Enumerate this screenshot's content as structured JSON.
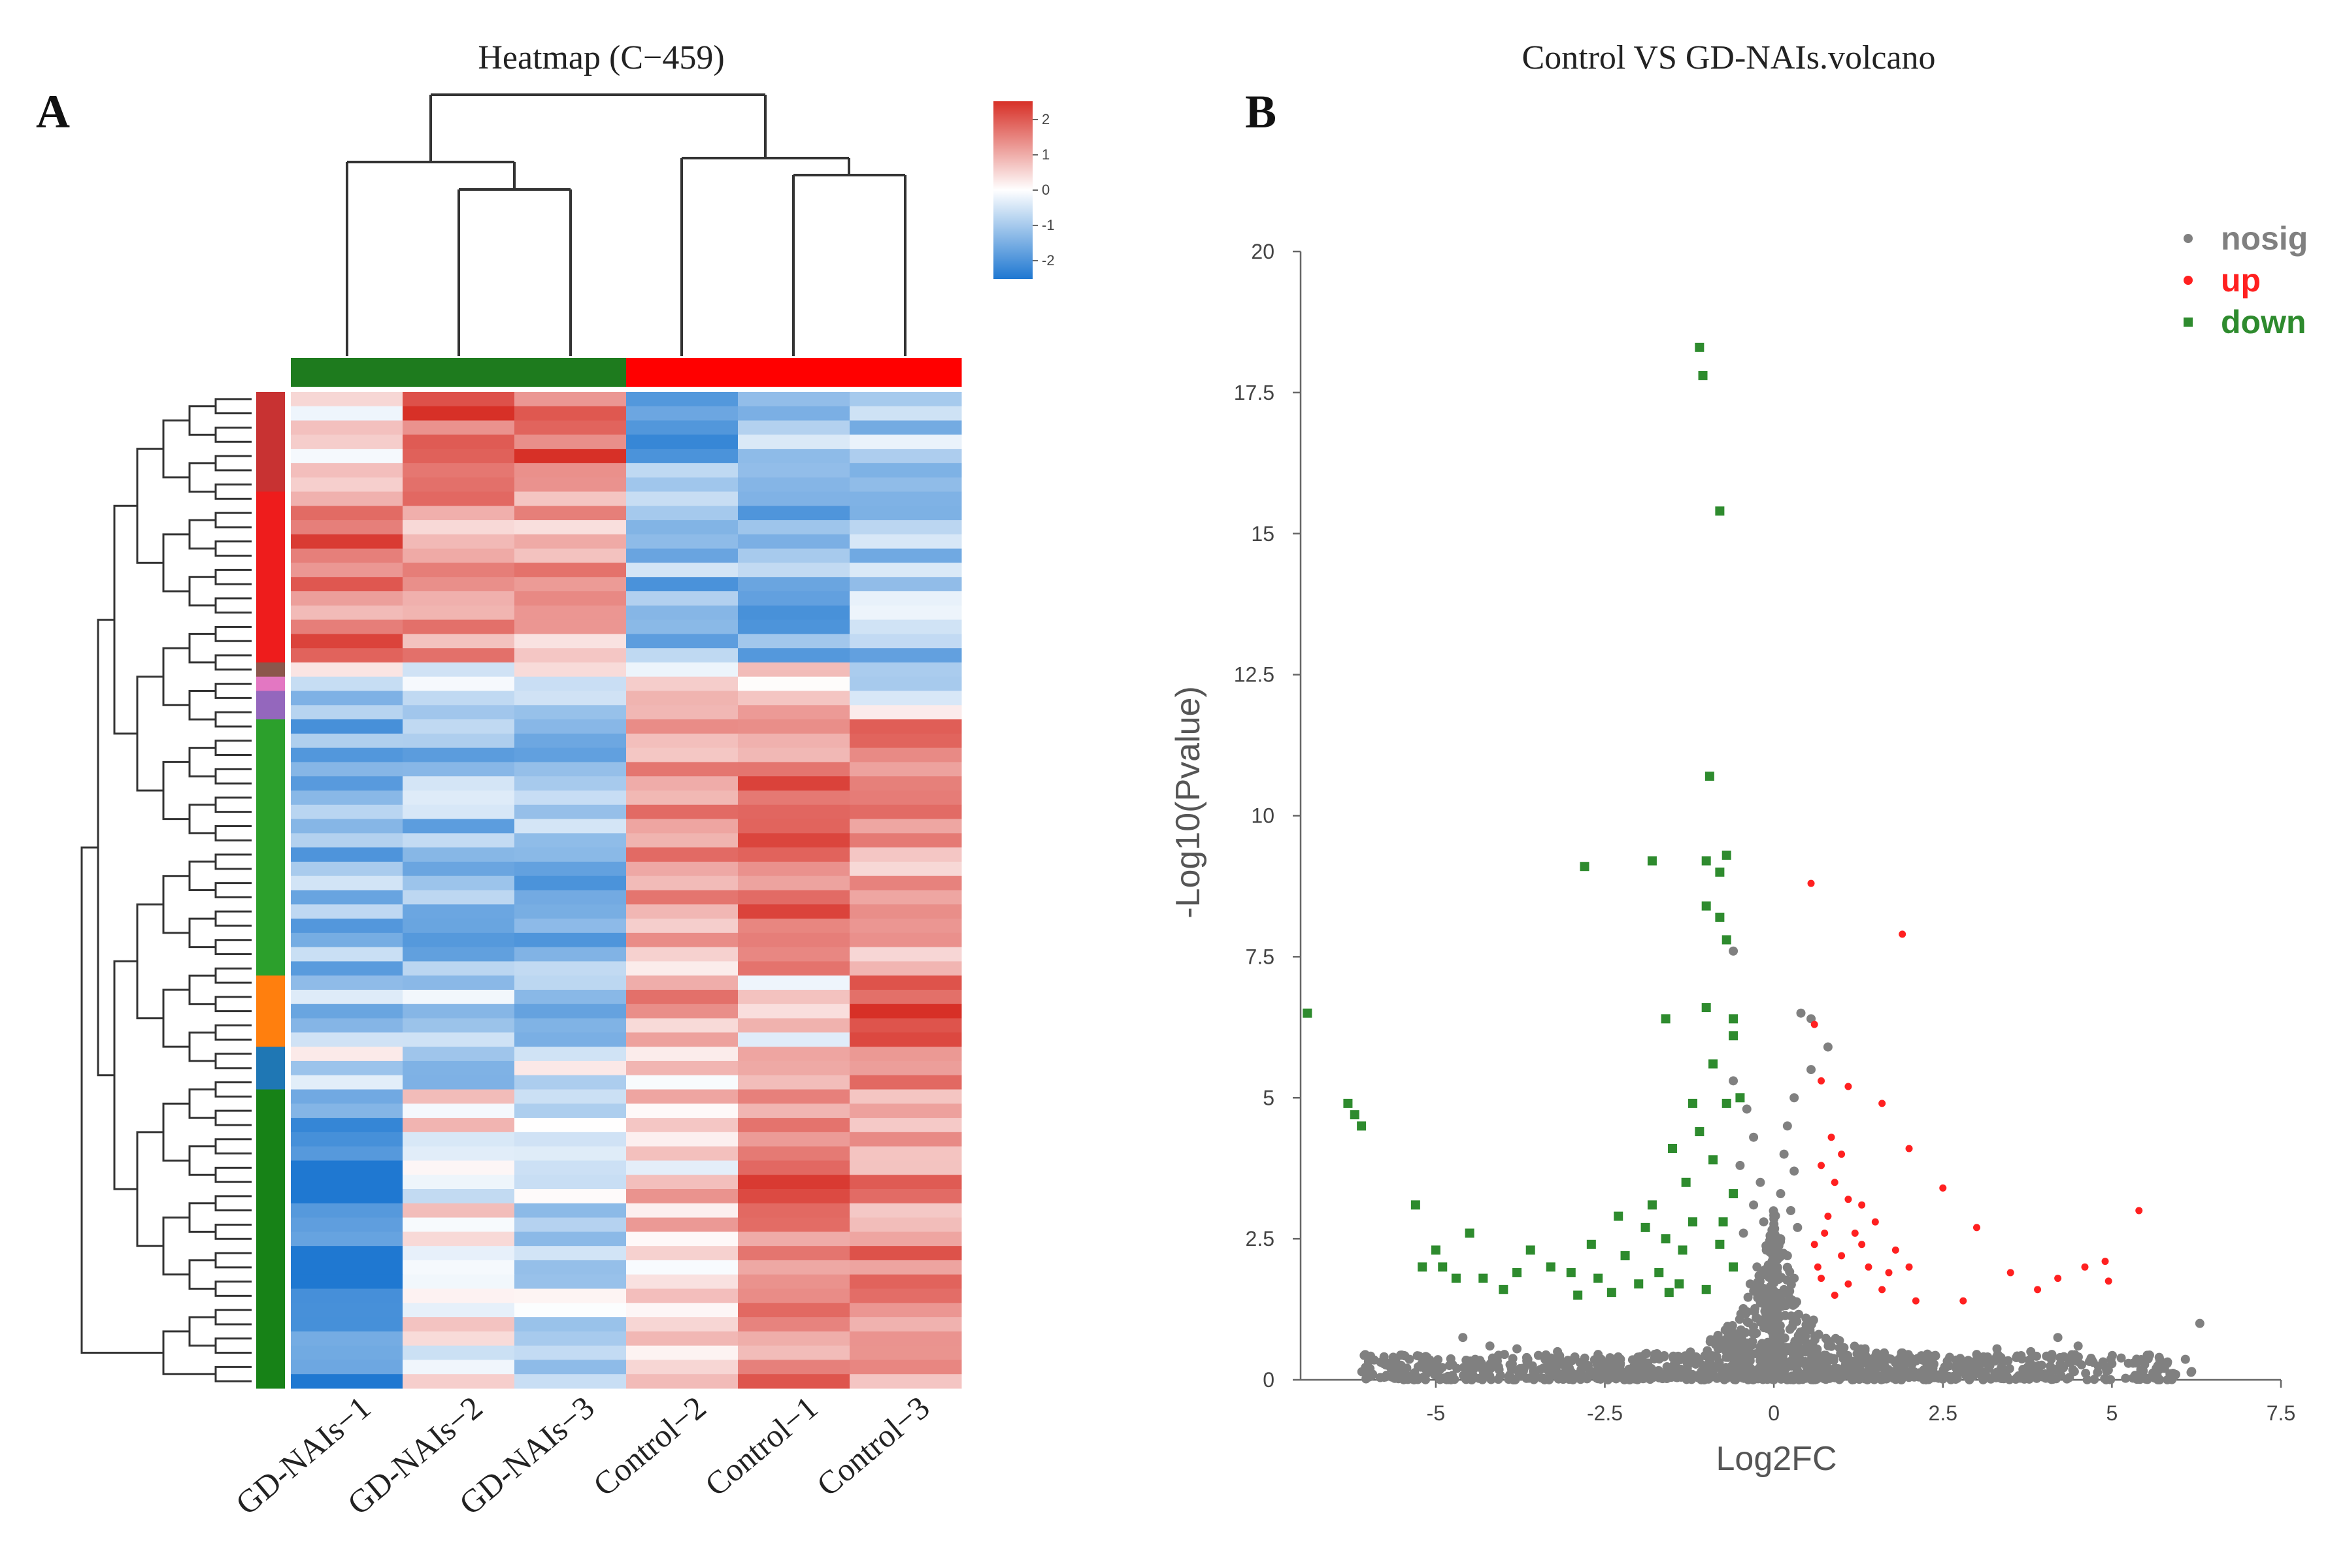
{
  "panel_a": {
    "letter": "A",
    "title": "Heatmap (C−459)",
    "legend_ticks": [
      "2",
      "1",
      "0",
      "-1",
      "-2"
    ],
    "samples": [
      "GD-NAIs−1",
      "GD-NAIs−2",
      "GD-NAIs−3",
      "Control−2",
      "Control−1",
      "Control−3"
    ],
    "group_colors": [
      "#1e7b1e",
      "#1e7b1e",
      "#1e7b1e",
      "#ff0000",
      "#ff0000",
      "#ff0000"
    ],
    "cluster_colors": [
      {
        "color": "#c83232",
        "rows": 7
      },
      {
        "color": "#ee1c1c",
        "rows": 12
      },
      {
        "color": "#8c564b",
        "rows": 1
      },
      {
        "color": "#e377c2",
        "rows": 1
      },
      {
        "color": "#9467bd",
        "rows": 2
      },
      {
        "color": "#2ca02c",
        "rows": 18
      },
      {
        "color": "#ff7f0e",
        "rows": 5
      },
      {
        "color": "#1f77b4",
        "rows": 3
      },
      {
        "color": "#178217",
        "rows": 21
      }
    ]
  },
  "panel_b": {
    "letter": "B",
    "title": "Control VS GD-NAIs.volcano"
  },
  "chart_data": [
    {
      "type": "heatmap",
      "title": "Heatmap (C−459)",
      "columns": [
        "GD-NAIs−1",
        "GD-NAIs−2",
        "GD-NAIs−3",
        "Control−2",
        "Control−1",
        "Control−3"
      ],
      "value_range": [
        -2,
        2
      ],
      "row_groups": [
        {
          "rows": 7,
          "values": [
            0.4,
            1.6,
            1.5,
            -1.2,
            -0.9,
            -0.8
          ]
        },
        {
          "rows": 12,
          "values": [
            1.3,
            0.9,
            0.9,
            -1.0,
            -1.1,
            -0.8
          ]
        },
        {
          "rows": 1,
          "values": [
            0.8,
            0.2,
            0.3,
            -0.6,
            0.2,
            -0.3
          ]
        },
        {
          "rows": 1,
          "values": [
            -0.5,
            0.5,
            -0.2,
            0.5,
            0.6,
            -0.6
          ]
        },
        {
          "rows": 2,
          "values": [
            -0.8,
            -0.3,
            -0.8,
            1.2,
            1.0,
            0.3
          ]
        },
        {
          "rows": 18,
          "values": [
            -1.0,
            -0.9,
            -1.0,
            0.8,
            1.3,
            1.0
          ]
        },
        {
          "rows": 5,
          "values": [
            -0.8,
            -0.7,
            -0.9,
            0.8,
            0.2,
            1.5
          ]
        },
        {
          "rows": 3,
          "values": [
            -0.4,
            -1.0,
            -0.2,
            0.4,
            0.8,
            0.9
          ]
        },
        {
          "rows": 21,
          "values": [
            -1.6,
            0.1,
            -0.4,
            0.4,
            1.3,
            1.1
          ]
        }
      ]
    },
    {
      "type": "scatter",
      "title": "Control VS GD-NAIs.volcano",
      "xlabel": "Log2FC",
      "ylabel": "-Log10(Pvalue)",
      "xlim": [
        -7,
        7.5
      ],
      "ylim": [
        0,
        20
      ],
      "xticks": [
        -5,
        -2.5,
        0,
        2.5,
        5,
        7.5
      ],
      "yticks": [
        0,
        2.5,
        5,
        7.5,
        10,
        12.5,
        15,
        17.5,
        20
      ],
      "xtick_labels": [
        "-5",
        "-2.5",
        "0",
        "2.5",
        "5",
        "7.5"
      ],
      "ytick_labels": [
        "0",
        "2.5",
        "5",
        "7.5",
        "10",
        "12.5",
        "15",
        "17.5",
        "20"
      ],
      "legend_position": "top-right",
      "series": [
        {
          "name": "nosig",
          "color": "#808080",
          "points": [
            [
              -0.6,
              7.6
            ],
            [
              0.4,
              6.5
            ],
            [
              0.55,
              6.4
            ],
            [
              0.8,
              5.9
            ],
            [
              0.55,
              5.5
            ],
            [
              -0.6,
              5.3
            ],
            [
              0.3,
              5.0
            ],
            [
              -0.4,
              4.8
            ],
            [
              0.2,
              4.5
            ],
            [
              -0.3,
              4.3
            ],
            [
              0.15,
              4.0
            ],
            [
              -0.5,
              3.8
            ],
            [
              0.3,
              3.7
            ],
            [
              -0.2,
              3.5
            ],
            [
              0.1,
              3.3
            ],
            [
              -0.3,
              3.1
            ],
            [
              0.25,
              3.0
            ],
            [
              -0.15,
              2.8
            ],
            [
              0.35,
              2.7
            ],
            [
              -0.45,
              2.6
            ],
            [
              0.1,
              2.5
            ],
            [
              -0.1,
              2.3
            ],
            [
              0.2,
              2.2
            ],
            [
              -0.25,
              2.0
            ],
            [
              0.05,
              1.9
            ],
            [
              0.3,
              1.8
            ],
            [
              -0.35,
              1.7
            ],
            [
              0.15,
              1.6
            ],
            [
              -0.05,
              1.5
            ],
            [
              6.3,
              1.0
            ],
            [
              4.5,
              0.6
            ],
            [
              4.2,
              0.75
            ],
            [
              3.8,
              0.5
            ],
            [
              3.3,
              0.55
            ],
            [
              3.0,
              0.45
            ],
            [
              2.6,
              0.4
            ],
            [
              2.2,
              0.35
            ],
            [
              1.8,
              0.3
            ],
            [
              -2.0,
              0.4
            ],
            [
              -2.6,
              0.45
            ],
            [
              -3.2,
              0.5
            ],
            [
              -3.8,
              0.55
            ],
            [
              -4.2,
              0.6
            ],
            [
              -4.6,
              0.75
            ],
            [
              -1.2,
              0.3
            ],
            [
              1.2,
              0.3
            ]
          ]
        },
        {
          "name": "up",
          "color": "#ff2020",
          "points": [
            [
              0.55,
              8.8
            ],
            [
              1.9,
              7.9
            ],
            [
              0.6,
              6.3
            ],
            [
              0.7,
              5.3
            ],
            [
              0.85,
              4.3
            ],
            [
              1.1,
              5.2
            ],
            [
              1.6,
              4.9
            ],
            [
              2.0,
              4.1
            ],
            [
              2.5,
              3.4
            ],
            [
              1.3,
              3.1
            ],
            [
              5.4,
              3.0
            ],
            [
              3.0,
              2.7
            ],
            [
              3.5,
              1.9
            ],
            [
              3.9,
              1.6
            ],
            [
              4.2,
              1.8
            ],
            [
              4.6,
              2.0
            ],
            [
              4.9,
              2.1
            ],
            [
              4.95,
              1.75
            ],
            [
              2.8,
              1.4
            ],
            [
              2.1,
              1.4
            ],
            [
              0.7,
              3.8
            ],
            [
              0.9,
              3.5
            ],
            [
              1.1,
              3.2
            ],
            [
              0.8,
              2.9
            ],
            [
              1.2,
              2.6
            ],
            [
              0.6,
              2.4
            ],
            [
              1.0,
              2.2
            ],
            [
              1.4,
              2.0
            ],
            [
              0.7,
              1.8
            ],
            [
              1.1,
              1.7
            ],
            [
              1.6,
              1.6
            ],
            [
              0.9,
              1.5
            ],
            [
              1.3,
              2.4
            ],
            [
              1.8,
              2.3
            ],
            [
              0.65,
              2.0
            ],
            [
              1.7,
              1.9
            ],
            [
              2.0,
              2.0
            ],
            [
              1.5,
              2.8
            ],
            [
              1.0,
              4.0
            ],
            [
              0.75,
              2.6
            ]
          ]
        },
        {
          "name": "down",
          "color": "#2e8b2e",
          "points": [
            [
              -1.1,
              18.3
            ],
            [
              -1.05,
              17.8
            ],
            [
              -0.8,
              15.4
            ],
            [
              -0.95,
              10.7
            ],
            [
              -2.8,
              9.1
            ],
            [
              -1.8,
              9.2
            ],
            [
              -1.0,
              9.2
            ],
            [
              -0.7,
              9.3
            ],
            [
              -0.8,
              9.0
            ],
            [
              -1.0,
              8.4
            ],
            [
              -0.8,
              8.2
            ],
            [
              -0.7,
              7.8
            ],
            [
              -1.0,
              6.6
            ],
            [
              -1.6,
              6.4
            ],
            [
              -0.6,
              6.4
            ],
            [
              -0.6,
              6.1
            ],
            [
              -6.3,
              4.9
            ],
            [
              -6.2,
              4.7
            ],
            [
              -6.1,
              4.5
            ],
            [
              -5.3,
              3.1
            ],
            [
              -6.9,
              6.5
            ],
            [
              -5.0,
              2.3
            ],
            [
              -4.9,
              2.0
            ],
            [
              -4.5,
              2.6
            ],
            [
              -4.3,
              1.8
            ],
            [
              -4.0,
              1.6
            ],
            [
              -3.6,
              2.3
            ],
            [
              -3.3,
              2.0
            ],
            [
              -2.9,
              1.5
            ],
            [
              -2.6,
              1.8
            ],
            [
              -2.2,
              2.2
            ],
            [
              -2.0,
              1.7
            ],
            [
              -1.8,
              3.1
            ],
            [
              -1.6,
              2.5
            ],
            [
              -1.5,
              4.1
            ],
            [
              -1.3,
              3.5
            ],
            [
              -1.2,
              2.8
            ],
            [
              -1.1,
              4.4
            ],
            [
              -0.9,
              3.9
            ],
            [
              -0.8,
              2.4
            ],
            [
              -0.7,
              4.9
            ],
            [
              -1.4,
              1.7
            ],
            [
              -1.7,
              1.9
            ],
            [
              -1.0,
              1.6
            ],
            [
              -0.6,
              2.0
            ],
            [
              -0.6,
              3.3
            ],
            [
              -1.9,
              2.7
            ],
            [
              -2.3,
              2.9
            ],
            [
              -2.7,
              2.4
            ],
            [
              -3.0,
              1.9
            ],
            [
              -0.9,
              5.6
            ],
            [
              -1.2,
              4.9
            ],
            [
              -0.5,
              5.0
            ],
            [
              -1.35,
              2.3
            ],
            [
              -0.75,
              2.8
            ],
            [
              -1.55,
              1.55
            ],
            [
              -2.4,
              1.55
            ],
            [
              -3.8,
              1.9
            ],
            [
              -4.7,
              1.8
            ],
            [
              -5.2,
              2.0
            ]
          ]
        }
      ]
    }
  ]
}
